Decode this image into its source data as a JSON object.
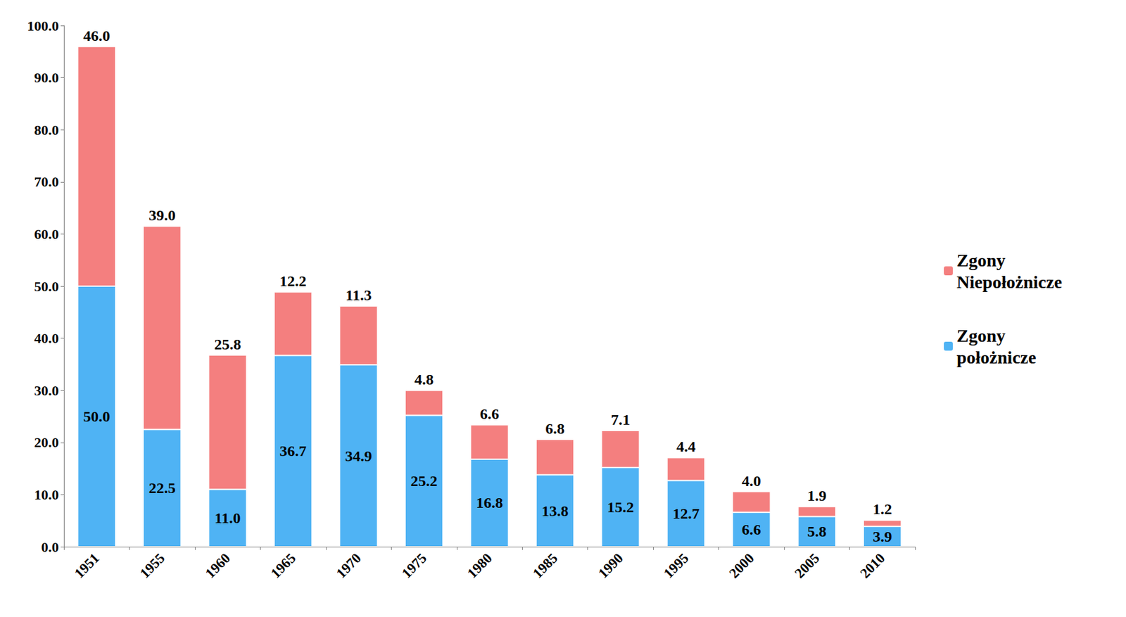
{
  "chart_data": {
    "type": "bar",
    "categories": [
      "1951",
      "1955",
      "1960",
      "1965",
      "1970",
      "1975",
      "1980",
      "1985",
      "1990",
      "1995",
      "2000",
      "2005",
      "2010"
    ],
    "series": [
      {
        "name": "Zgony położnicze",
        "color": "#4fb3f4",
        "values": [
          50.0,
          22.5,
          11.0,
          36.7,
          34.9,
          25.2,
          16.8,
          13.8,
          15.2,
          12.7,
          6.6,
          5.8,
          3.9
        ],
        "value_labels": [
          "50.0",
          "22.5",
          "11.0",
          "36.7",
          "34.9",
          "25.2",
          "16.8",
          "13.8",
          "15.2",
          "12.7",
          "6.6",
          "5.8",
          "3.9"
        ]
      },
      {
        "name": "Zgony Niepołożnicze",
        "color": "#f47f7f",
        "values": [
          46.0,
          39.0,
          25.8,
          12.2,
          11.3,
          4.8,
          6.6,
          6.8,
          7.1,
          4.4,
          4.0,
          1.9,
          1.2
        ],
        "value_labels": [
          "46.0",
          "39.0",
          "25.8",
          "12.2",
          "11.3",
          "4.8",
          "6.6",
          "6.8",
          "7.1",
          "4.4",
          "4.0",
          "1.9",
          "1.2"
        ]
      }
    ],
    "ylim": [
      0,
      100
    ],
    "yticks": [
      {
        "value": 0,
        "label": "0.0"
      },
      {
        "value": 10,
        "label": "10.0"
      },
      {
        "value": 20,
        "label": "20.0"
      },
      {
        "value": 30,
        "label": "30.0"
      },
      {
        "value": 40,
        "label": "40.0"
      },
      {
        "value": 50,
        "label": "50.0"
      },
      {
        "value": 60,
        "label": "60.0"
      },
      {
        "value": 70,
        "label": "70.0"
      },
      {
        "value": 80,
        "label": "80.0"
      },
      {
        "value": 90,
        "label": "90.0"
      },
      {
        "value": 100,
        "label": "100.0"
      }
    ],
    "stacked": true,
    "data_labels": true,
    "grid": false,
    "legend": "right"
  }
}
